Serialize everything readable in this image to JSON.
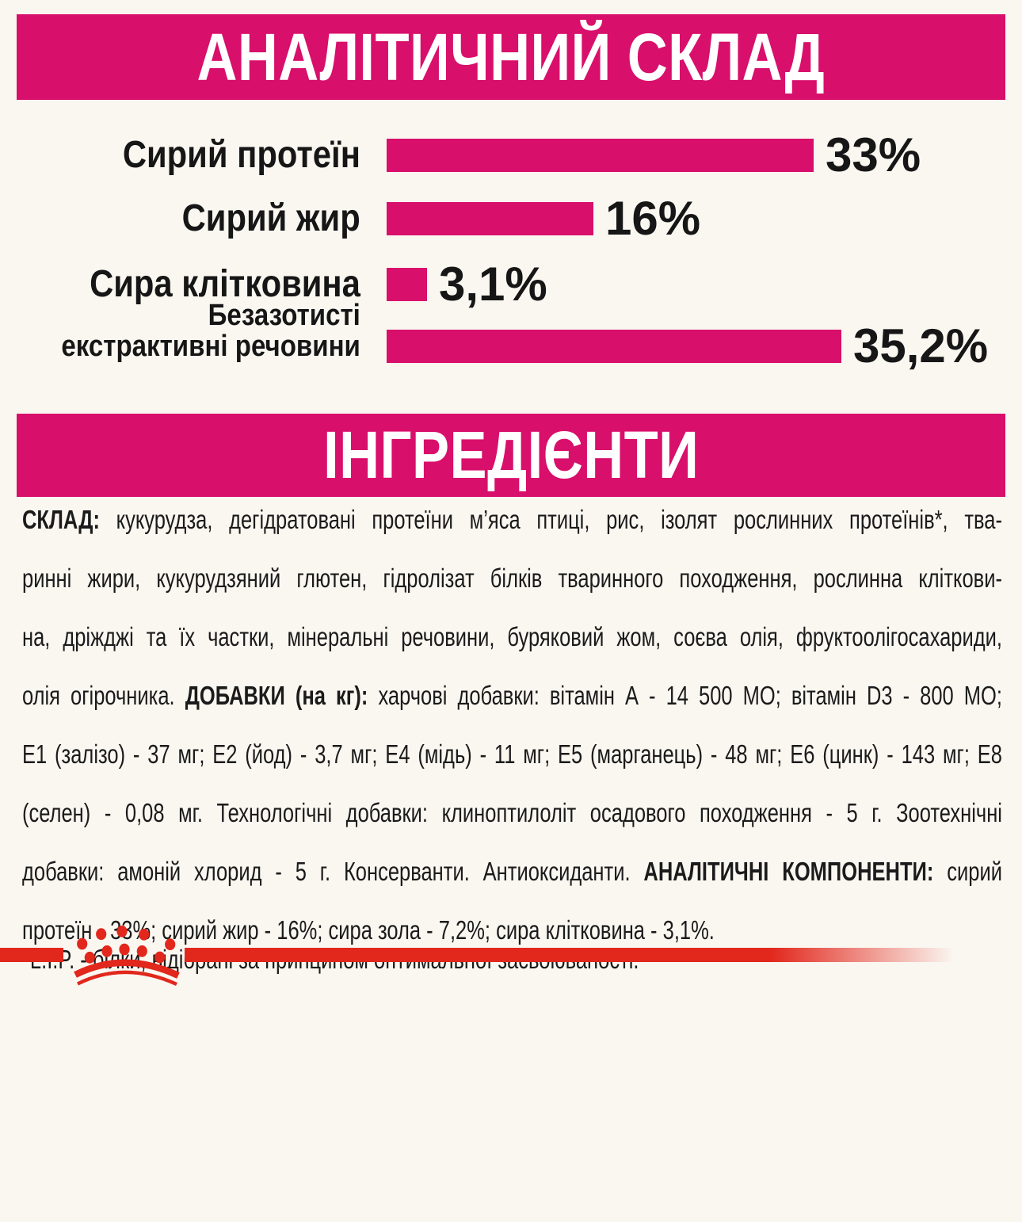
{
  "headers": {
    "analytical": "АНАЛІТИЧНИЙ СКЛАД",
    "ingredients": "ІНГРЕДІЄНТИ"
  },
  "chart_data": {
    "type": "bar",
    "orientation": "horizontal",
    "title": "АНАЛІТИЧНИЙ СКЛАД",
    "categories": [
      "Сирий протеїн",
      "Сирий жир",
      "Сира клітковина",
      "Безазотисті екстрактивні речовини"
    ],
    "values": [
      33,
      16,
      3.1,
      35.2
    ],
    "value_labels": [
      "33%",
      "16%",
      "3,1%",
      "35,2%"
    ],
    "labels_lines": [
      [
        "Сирий протеїн"
      ],
      [
        "Сирий жир"
      ],
      [
        "Сира клітковина"
      ],
      [
        "Безазотисті",
        "екстрактивні речовини"
      ]
    ],
    "unit": "%",
    "xlim": [
      0,
      40
    ],
    "grid": false,
    "legend": "none",
    "bar_color": "#D80F6B"
  },
  "ingredients": {
    "lines": [
      {
        "justify": true,
        "segments": [
          {
            "text": "СКЛАД:",
            "bold": true
          },
          {
            "text": " кукурудза, дегідратовані протеїни м’яса птиці, рис, ізолят рослинних протеїнів*, тва-"
          }
        ]
      },
      {
        "justify": true,
        "segments": [
          {
            "text": "ринні жири, кукурудзяний глютен, гідролізат білків тваринного походження, рослинна кліткови-"
          }
        ]
      },
      {
        "justify": true,
        "segments": [
          {
            "text": "на, дріжджі та їх частки, мінеральні речовини, буряковий жом, соєва олія, фруктоолігосахариди,"
          }
        ]
      },
      {
        "justify": true,
        "segments": [
          {
            "text": "олія огірочника. "
          },
          {
            "text": "ДОБАВКИ (на кг):",
            "bold": true
          },
          {
            "text": " харчові добавки: вітамін А - 14 500 МО; вітамін D3 - 800 МО;"
          }
        ]
      },
      {
        "justify": true,
        "segments": [
          {
            "text": "Е1 (залізо) - 37 мг; Е2 (йод) - 3,7 мг; Е4 (мідь) - 11 мг; Е5 (марганець) - 48 мг; Е6 (цинк) - 143 мг; Е8"
          }
        ]
      },
      {
        "justify": true,
        "segments": [
          {
            "text": "(селен) - 0,08 мг. Технологічні добавки: клиноптилоліт осадового походження - 5 г. Зоотехнічні"
          }
        ]
      },
      {
        "justify": true,
        "segments": [
          {
            "text": "добавки: амоній хлорид - 5 г. Консерванти. Антиоксиданти. "
          },
          {
            "text": "АНАЛІТИЧНІ КОМПОНЕНТИ:",
            "bold": true
          },
          {
            "text": " сирий"
          }
        ]
      },
      {
        "justify": false,
        "segments": [
          {
            "text": "протеїн - 33%; сирий жир - 16%; сира зола - 7,2%; сира клітковина - 3,1%."
          }
        ]
      },
      {
        "justify": false,
        "segments": [
          {
            "text": "*L.I.P. - білки, відібрані за принципом оптимальної засвоюваності."
          }
        ]
      }
    ]
  },
  "colors": {
    "magenta": "#D80F6B",
    "red": "#E2271C",
    "text": "#1B1B1B",
    "background": "#FAF7F1"
  },
  "footer": {
    "logo": "royal-canin-crown-logo"
  }
}
